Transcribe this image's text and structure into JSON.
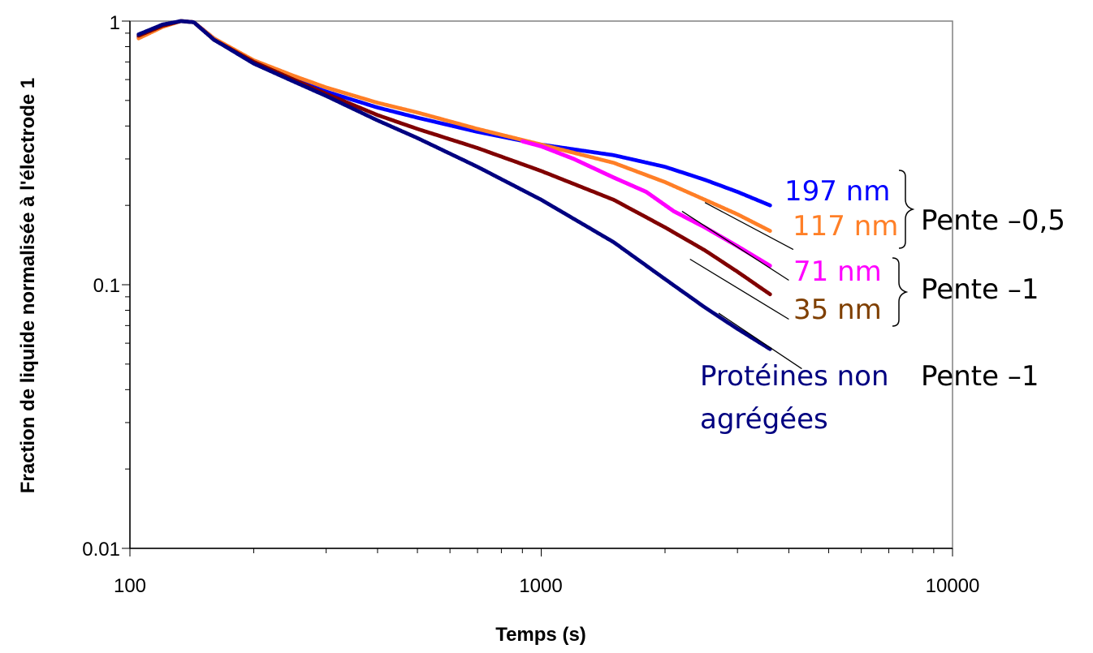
{
  "chart_data": {
    "type": "scatter",
    "xscale": "log",
    "yscale": "log",
    "xlim": [
      100,
      10000
    ],
    "ylim": [
      0.01,
      1
    ],
    "xticks": [
      "100",
      "1000",
      "10000"
    ],
    "yticks": [
      "0.01",
      "0.1",
      "1"
    ],
    "xlabel": "Temps (s)",
    "ylabel": "Fraction de liquide normalisée à l'électrode 1",
    "grid": false,
    "series": [
      {
        "name": "197 nm",
        "color": "#0000ff",
        "x": [
          105,
          120,
          133,
          143,
          160,
          200,
          250,
          300,
          400,
          500,
          700,
          1000,
          1500,
          2000,
          2500,
          3000,
          3600
        ],
        "y": [
          0.87,
          0.96,
          1.0,
          0.99,
          0.86,
          0.7,
          0.6,
          0.54,
          0.47,
          0.43,
          0.38,
          0.34,
          0.31,
          0.28,
          0.25,
          0.225,
          0.2
        ]
      },
      {
        "name": "117 nm",
        "color": "#ff7f27",
        "x": [
          105,
          120,
          133,
          143,
          160,
          200,
          250,
          300,
          400,
          500,
          700,
          1000,
          1500,
          2000,
          2500,
          3000,
          3600
        ],
        "y": [
          0.86,
          0.95,
          1.0,
          0.99,
          0.86,
          0.71,
          0.62,
          0.56,
          0.49,
          0.45,
          0.39,
          0.34,
          0.29,
          0.245,
          0.21,
          0.185,
          0.16
        ]
      },
      {
        "name": "71 nm",
        "color": "#ff00ff",
        "x": [
          900,
          1000,
          1200,
          1500,
          1800,
          2100,
          2500,
          3000,
          3600
        ],
        "y": [
          0.35,
          0.335,
          0.3,
          0.255,
          0.225,
          0.19,
          0.165,
          0.14,
          0.118
        ]
      },
      {
        "name": "35 nm",
        "color": "#800000",
        "x": [
          105,
          120,
          133,
          143,
          160,
          200,
          250,
          300,
          400,
          500,
          700,
          1000,
          1500,
          2000,
          2500,
          3000,
          3600
        ],
        "y": [
          0.88,
          0.96,
          1.0,
          0.99,
          0.85,
          0.7,
          0.6,
          0.53,
          0.44,
          0.39,
          0.33,
          0.27,
          0.21,
          0.165,
          0.135,
          0.112,
          0.092
        ]
      },
      {
        "name": "Protéines non agrégées",
        "color": "#000080",
        "x": [
          105,
          120,
          133,
          143,
          160,
          200,
          250,
          300,
          400,
          500,
          700,
          1000,
          1500,
          2000,
          2500,
          3000,
          3600
        ],
        "y": [
          0.89,
          0.97,
          1.0,
          0.99,
          0.85,
          0.69,
          0.59,
          0.52,
          0.42,
          0.36,
          0.28,
          0.21,
          0.145,
          0.105,
          0.082,
          0.068,
          0.057
        ]
      }
    ],
    "fit_lines": [
      {
        "series": "117 nm",
        "x": [
          2500,
          4100
        ],
        "y": [
          0.205,
          0.136
        ]
      },
      {
        "series": "71 nm",
        "x": [
          2200,
          4000
        ],
        "y": [
          0.19,
          0.104
        ]
      },
      {
        "series": "35 nm",
        "x": [
          2300,
          4000
        ],
        "y": [
          0.125,
          0.074
        ]
      },
      {
        "series": "Protéines non agrégées",
        "x": [
          2700,
          4300
        ],
        "y": [
          0.078,
          0.048
        ]
      }
    ],
    "annotations": {
      "label_197": "197 nm",
      "label_117": "117 nm",
      "label_71": "71 nm",
      "label_35": "35 nm",
      "label_prot_1": "Protéines non",
      "label_prot_2": "agrégées",
      "pente_05": "Pente –0,5",
      "pente_1a": "Pente –1",
      "pente_1b": "Pente –1"
    }
  }
}
